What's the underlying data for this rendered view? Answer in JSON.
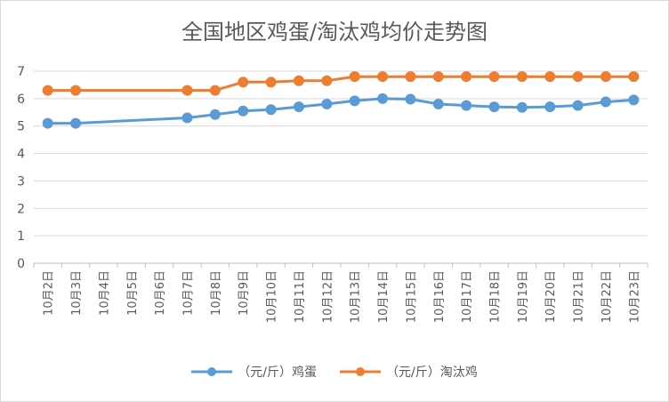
{
  "chart_data": {
    "type": "line",
    "title": "全国地区鸡蛋/淘汰鸡均价走势图",
    "categories": [
      "10月2日",
      "10月3日",
      "10月4日",
      "10月5日",
      "10月6日",
      "10月7日",
      "10月8日",
      "10月9日",
      "10月10日",
      "10月11日",
      "10月12日",
      "10月13日",
      "10月14日",
      "10月15日",
      "10月16日",
      "10月17日",
      "10月18日",
      "10月19日",
      "10月20日",
      "10月21日",
      "10月22日",
      "10月23日"
    ],
    "series": [
      {
        "name": "（元/斤）鸡蛋",
        "color": "#5b9bd5",
        "values": [
          5.1,
          5.1,
          null,
          null,
          null,
          5.3,
          5.42,
          5.55,
          5.6,
          5.7,
          5.8,
          5.92,
          6.0,
          5.98,
          5.8,
          5.75,
          5.7,
          5.68,
          5.7,
          5.75,
          5.88,
          5.95
        ]
      },
      {
        "name": "（元/斤）淘汰鸡",
        "color": "#ed7d31",
        "values": [
          6.3,
          6.3,
          null,
          null,
          null,
          6.3,
          6.3,
          6.6,
          6.6,
          6.65,
          6.65,
          6.8,
          6.8,
          6.8,
          6.8,
          6.8,
          6.8,
          6.8,
          6.8,
          6.8,
          6.8,
          6.8
        ]
      }
    ],
    "y_ticks": [
      0,
      1,
      2,
      3,
      4,
      5,
      6,
      7
    ],
    "ylim": [
      0,
      7
    ],
    "xlabel": "",
    "ylabel": "",
    "grid": true,
    "legend_position": "bottom"
  }
}
